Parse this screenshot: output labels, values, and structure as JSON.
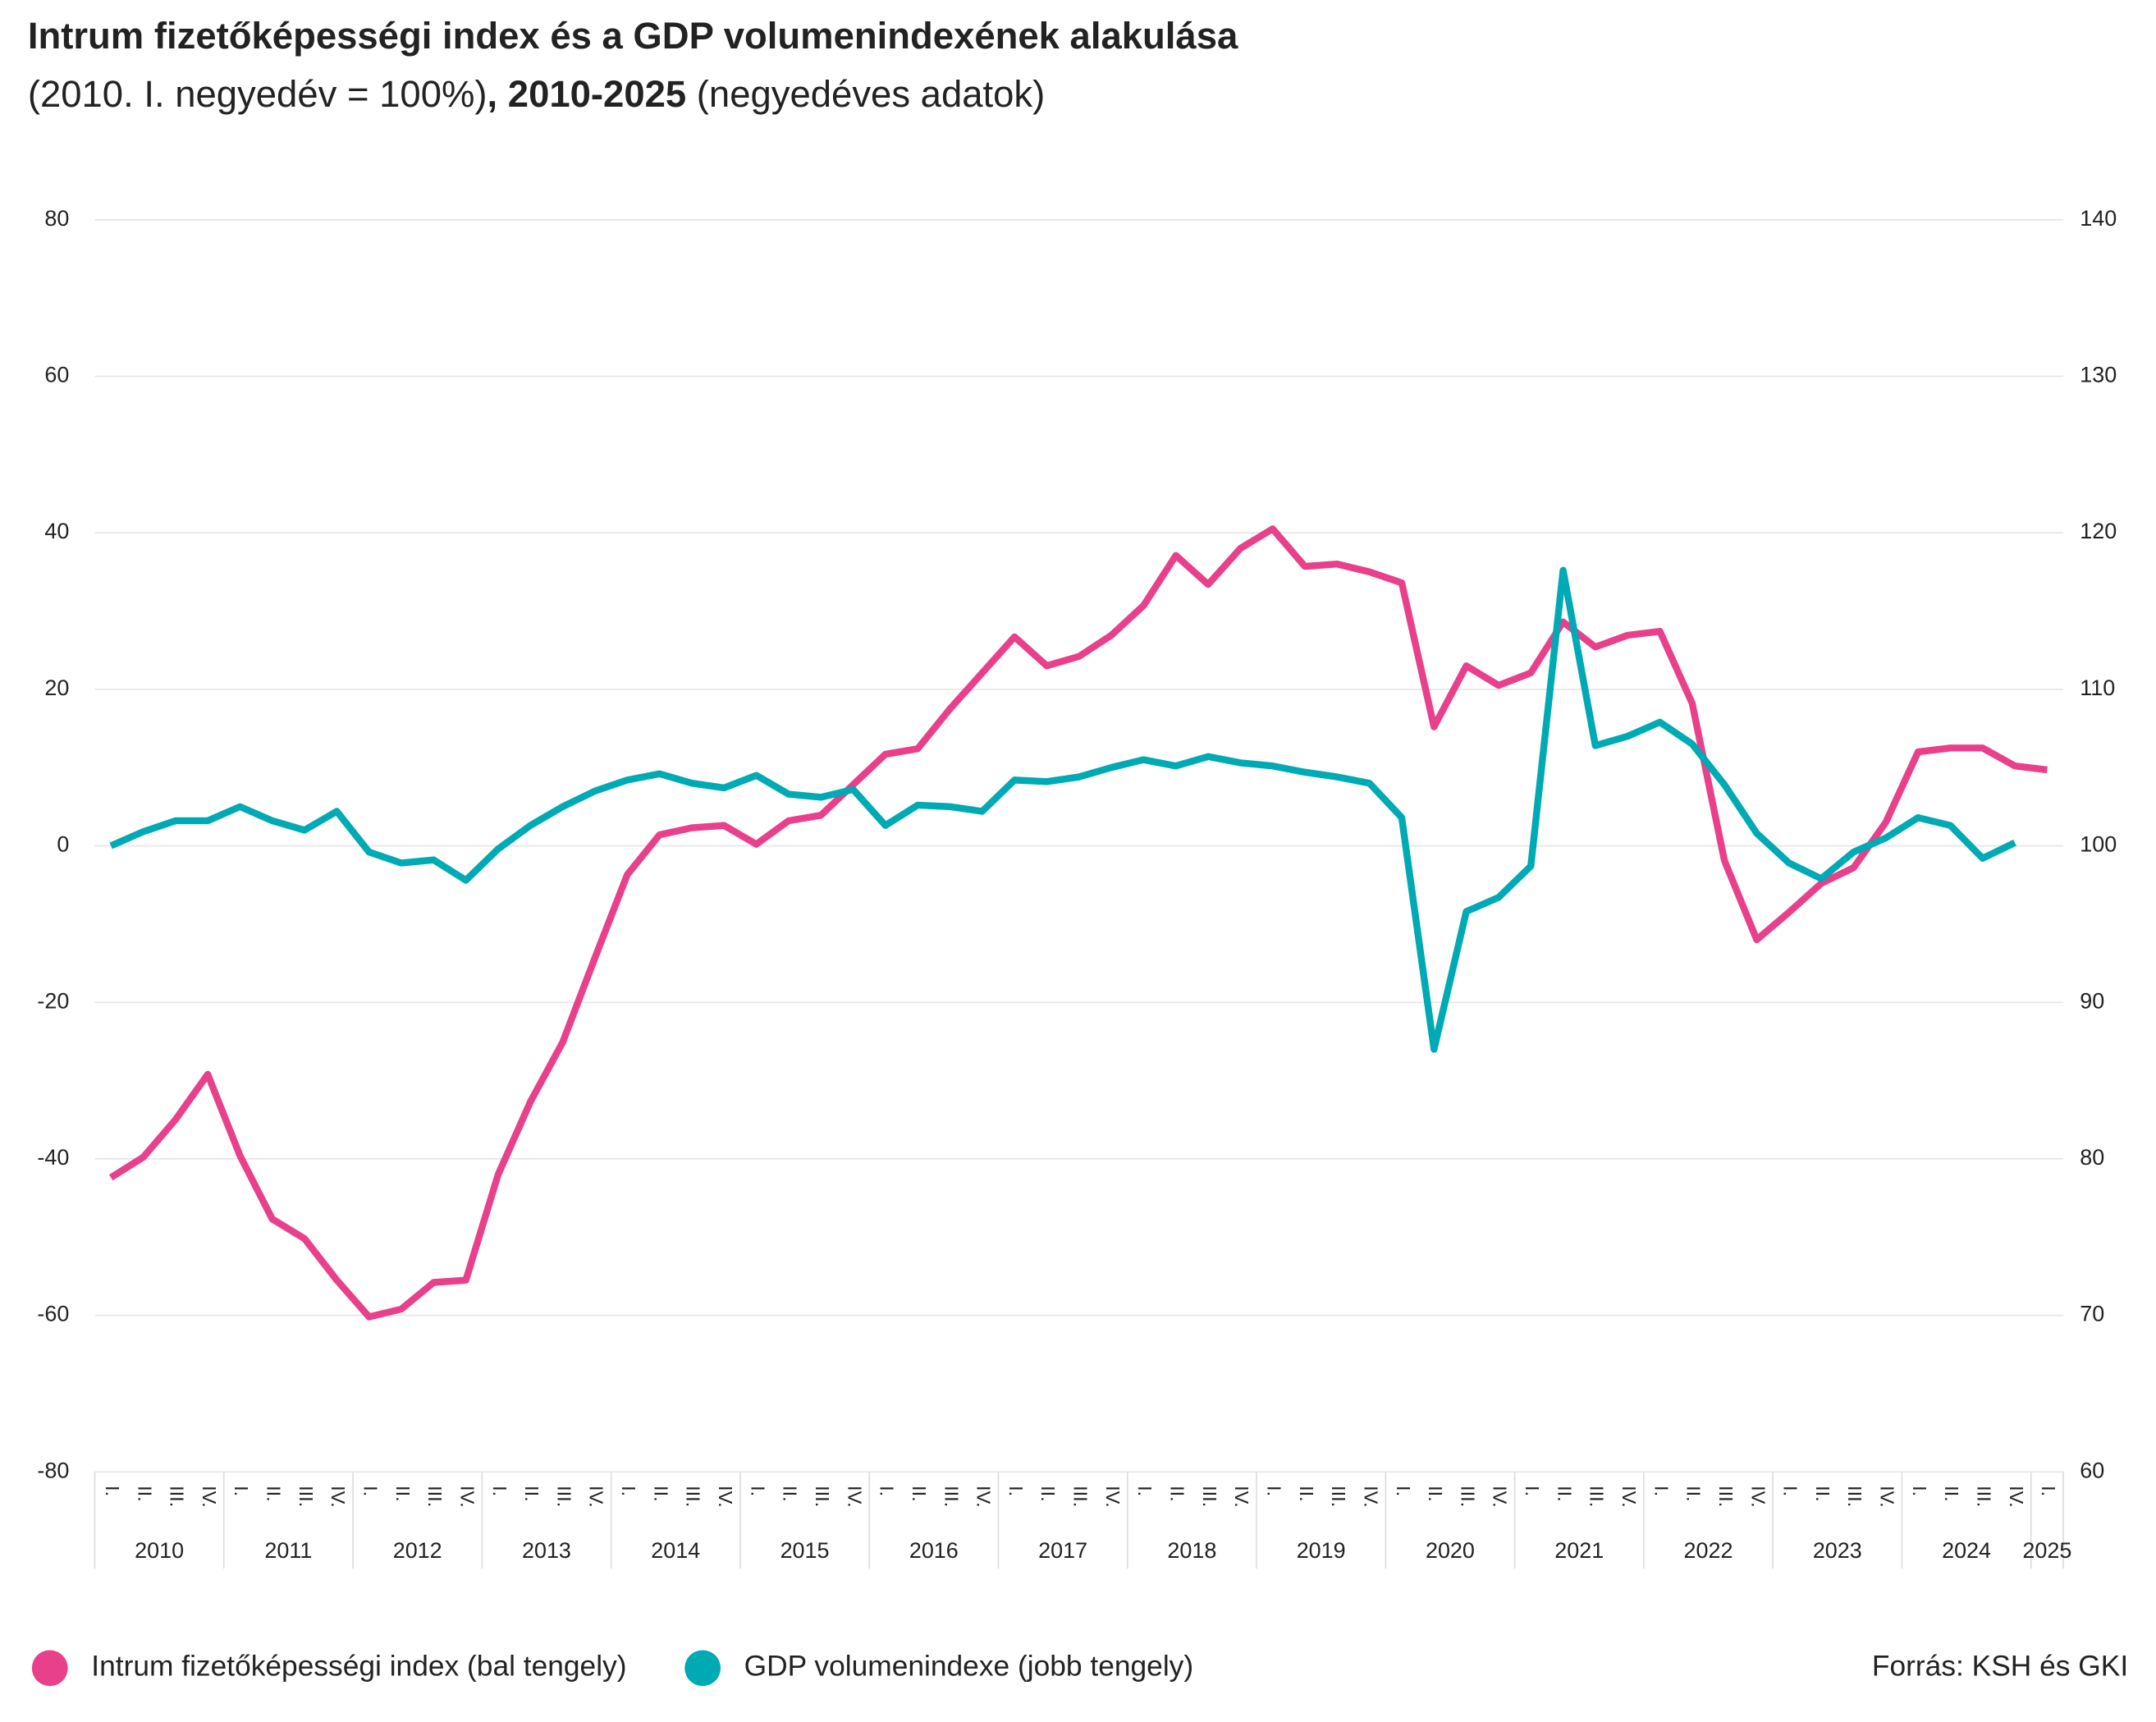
{
  "chart_data": {
    "type": "line",
    "title": "Intrum fizetőképességi index és a GDP volumenindexének alakulása",
    "subtitle": [
      {
        "text": "(2010. I. negyedév = 100%)",
        "bold": false
      },
      {
        "text": ", 2010-2025",
        "bold": true
      },
      {
        "text": " (negyedéves adatok)",
        "bold": false
      }
    ],
    "categories": [
      "I.",
      "II.",
      "III.",
      "IV.",
      "I.",
      "II.",
      "III.",
      "IV.",
      "I.",
      "II.",
      "III.",
      "IV.",
      "I.",
      "II.",
      "III.",
      "IV.",
      "I.",
      "II.",
      "III.",
      "IV.",
      "I.",
      "II.",
      "III.",
      "IV.",
      "I.",
      "II.",
      "III.",
      "IV.",
      "I.",
      "II.",
      "III.",
      "IV.",
      "I.",
      "II.",
      "III.",
      "IV.",
      "I.",
      "II.",
      "III.",
      "IV.",
      "I.",
      "II.",
      "III.",
      "IV.",
      "I.",
      "II.",
      "III.",
      "IV.",
      "I.",
      "II.",
      "III.",
      "IV.",
      "I.",
      "II.",
      "III.",
      "IV.",
      "I.",
      "II.",
      "III.",
      "IV.",
      "I."
    ],
    "years": [
      "2010",
      "2011",
      "2012",
      "2013",
      "2014",
      "2015",
      "2016",
      "2017",
      "2018",
      "2019",
      "2020",
      "2021",
      "2022",
      "2023",
      "2024",
      "2025"
    ],
    "series": [
      {
        "name": "Intrum fizetőképességi index (bal tengely)",
        "color": "#e8408a",
        "axis": "y",
        "values": [
          -42.4,
          -39.8,
          -35,
          -29.2,
          -39.6,
          -47.7,
          -50.2,
          -55.5,
          -60.2,
          -59.2,
          -55.8,
          -55.5,
          -42,
          -32.7,
          -25.1,
          -14.3,
          -3.7,
          1.4,
          2.3,
          2.6,
          0.2,
          3.2,
          3.9,
          7.8,
          11.7,
          12.4,
          17.5,
          22.1,
          26.7,
          23,
          24.2,
          26.9,
          30.7,
          37.1,
          33.4,
          38,
          40.5,
          35.7,
          36,
          35,
          33.6,
          15.2,
          23,
          20.5,
          22.1,
          28.6,
          25.4,
          26.9,
          27.4,
          18.2,
          -1.9,
          -12,
          -8.5,
          -4.8,
          -2.8,
          3,
          12,
          12.5,
          12.5,
          10.2,
          9.7
        ]
      },
      {
        "name": "GDP volumenindexe (jobb tengely)",
        "color": "#00aab5",
        "axis": "y2",
        "values": [
          100,
          100.9,
          101.6,
          101.6,
          102.5,
          101.6,
          101,
          102.2,
          99.6,
          98.9,
          99.1,
          97.8,
          99.8,
          101.3,
          102.5,
          103.5,
          104.2,
          104.6,
          104,
          103.7,
          104.5,
          103.3,
          103.1,
          103.6,
          101.3,
          102.6,
          102.5,
          102.2,
          104.2,
          104.1,
          104.4,
          105,
          105.5,
          105.1,
          105.7,
          105.3,
          105.1,
          104.7,
          104.4,
          104,
          101.8,
          87,
          95.8,
          96.7,
          98.7,
          117.6,
          106.4,
          107,
          107.9,
          106.5,
          103.9,
          100.8,
          98.9,
          97.9,
          99.6,
          100.5,
          101.8,
          101.3,
          99.2,
          100.2,
          null
        ]
      }
    ],
    "ylim": [
      -80,
      80
    ],
    "yticks": [
      -80,
      -60,
      -40,
      -20,
      0,
      20,
      40,
      60,
      80
    ],
    "y2lim": [
      60,
      140
    ],
    "y2ticks": [
      60,
      70,
      80,
      90,
      100,
      110,
      120,
      130,
      140
    ],
    "grid": true,
    "legend": "bottom-left",
    "source": "Forrás: KSH és GKI"
  }
}
